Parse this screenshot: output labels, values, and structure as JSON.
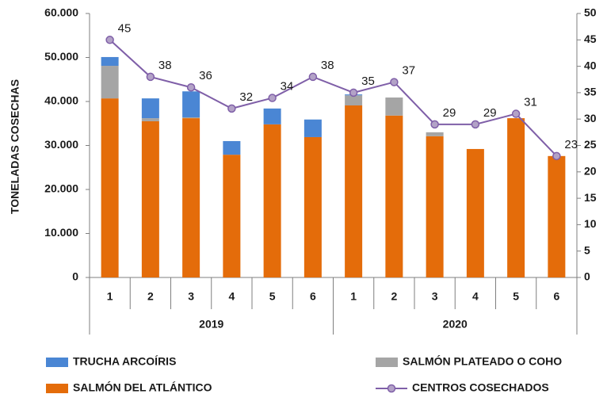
{
  "chart_data": {
    "type": "bar",
    "y_label": "TONELADAS COSECHAS",
    "categories": [
      "1",
      "2",
      "3",
      "4",
      "5",
      "6",
      "1",
      "2",
      "3",
      "4",
      "5",
      "6"
    ],
    "groups": [
      "2019",
      "2020"
    ],
    "ylim": [
      0,
      60000
    ],
    "yticks": [
      {
        "value": 0,
        "label": "0"
      },
      {
        "value": 10000,
        "label": "10.000"
      },
      {
        "value": 20000,
        "label": "20.000"
      },
      {
        "value": 30000,
        "label": "30.000"
      },
      {
        "value": 40000,
        "label": "40.000"
      },
      {
        "value": 50000,
        "label": "50.000"
      },
      {
        "value": 60000,
        "label": "60.000"
      }
    ],
    "y2lim": [
      0,
      50
    ],
    "y2ticks": [
      0,
      5,
      10,
      15,
      20,
      25,
      30,
      35,
      40,
      45,
      50
    ],
    "series": [
      {
        "name": "TRUCHA ARCOÍRIS",
        "color": "#4a86d4",
        "values": [
          2000,
          4500,
          5900,
          3100,
          3600,
          4000,
          200,
          0,
          0,
          0,
          0,
          0
        ]
      },
      {
        "name": "SALMÓN PLATEADO O COHO",
        "color": "#a5a5a5",
        "values": [
          7400,
          700,
          200,
          0,
          0,
          0,
          2300,
          4100,
          900,
          0,
          0,
          0
        ]
      },
      {
        "name": "SALMÓN DEL ATLÁNTICO",
        "color": "#e46c0a",
        "values": [
          40700,
          35500,
          36200,
          27900,
          34800,
          31900,
          39100,
          36800,
          32100,
          29200,
          36200,
          27600
        ]
      },
      {
        "name": "CENTROS COSECHADOS",
        "color": "#7f5fa8",
        "type": "line",
        "axis": "y2",
        "values": [
          45,
          38,
          36,
          32,
          34,
          38,
          35,
          37,
          29,
          29,
          31,
          23
        ]
      }
    ]
  }
}
